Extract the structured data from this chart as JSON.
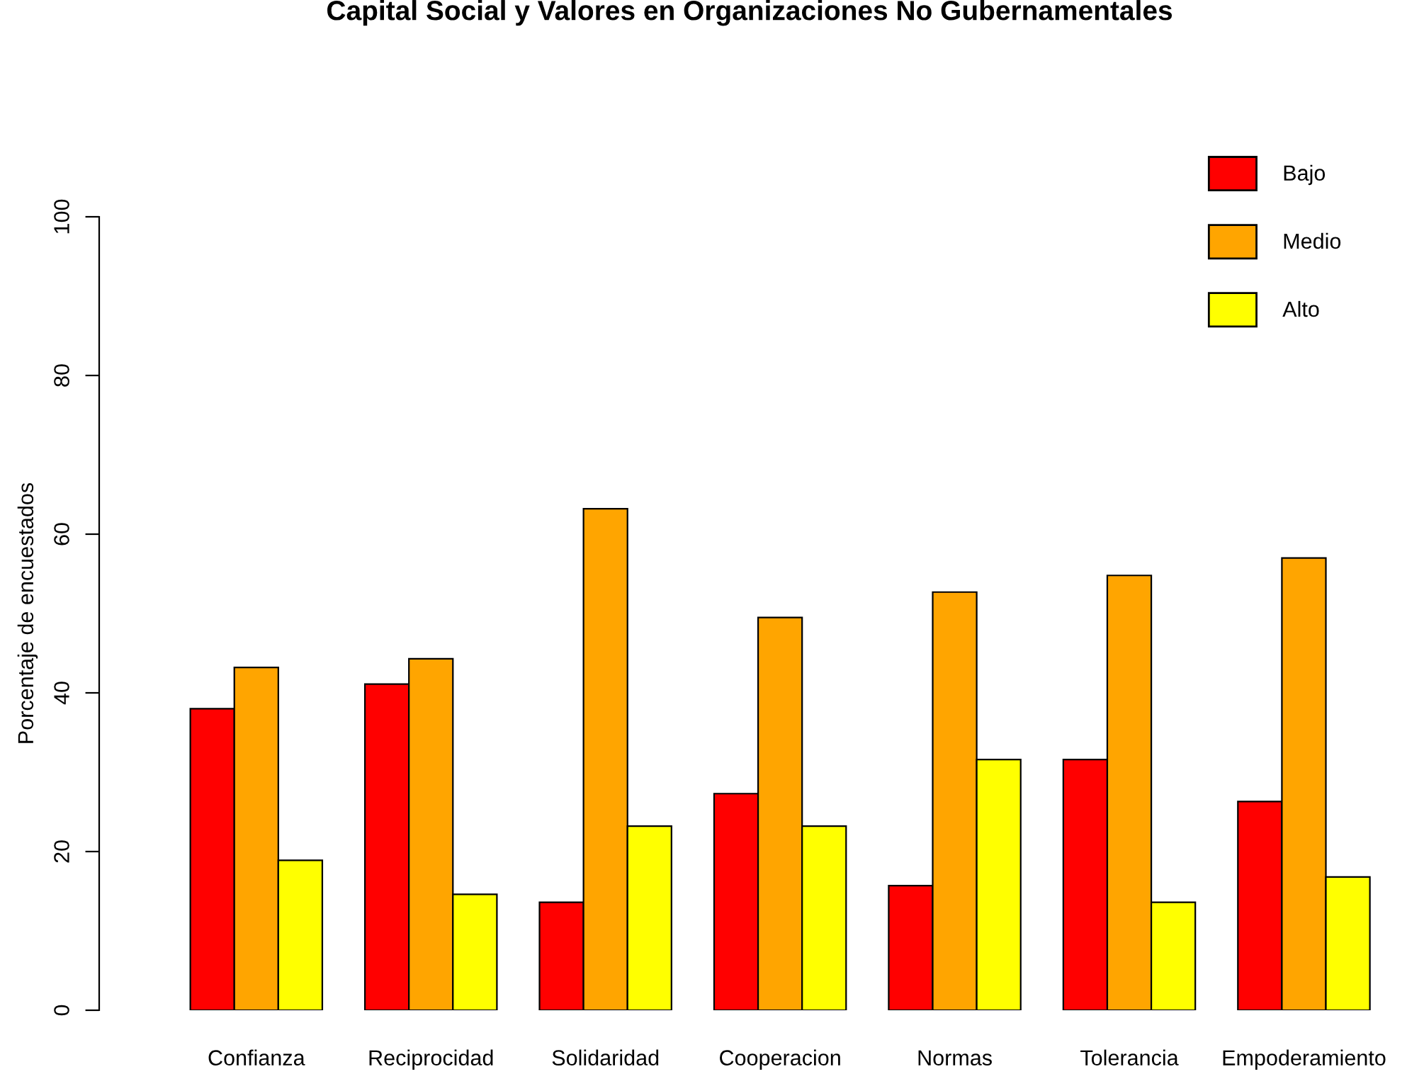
{
  "chart_data": {
    "type": "bar",
    "title": "Capital Social y Valores en Organizaciones No Gubernamentales",
    "ylabel": "Porcentaje de encuestados",
    "categories": [
      "Confianza",
      "Reciprocidad",
      "Solidaridad",
      "Cooperacion",
      "Normas",
      "Tolerancia",
      "Empoderamiento"
    ],
    "series": [
      {
        "name": "Bajo",
        "color": "#ff0000",
        "values": [
          38.0,
          41.1,
          13.6,
          27.3,
          15.7,
          31.6,
          26.3
        ]
      },
      {
        "name": "Medio",
        "color": "#ffa500",
        "values": [
          43.2,
          44.3,
          63.2,
          49.5,
          52.7,
          54.8,
          57.0
        ]
      },
      {
        "name": "Alto",
        "color": "#ffff00",
        "values": [
          18.9,
          14.6,
          23.2,
          23.2,
          31.6,
          13.6,
          16.8
        ]
      }
    ],
    "ylim": [
      0,
      100
    ],
    "yticks": [
      0,
      20,
      40,
      60,
      80,
      100
    ],
    "grid": false,
    "legend": "top right"
  }
}
